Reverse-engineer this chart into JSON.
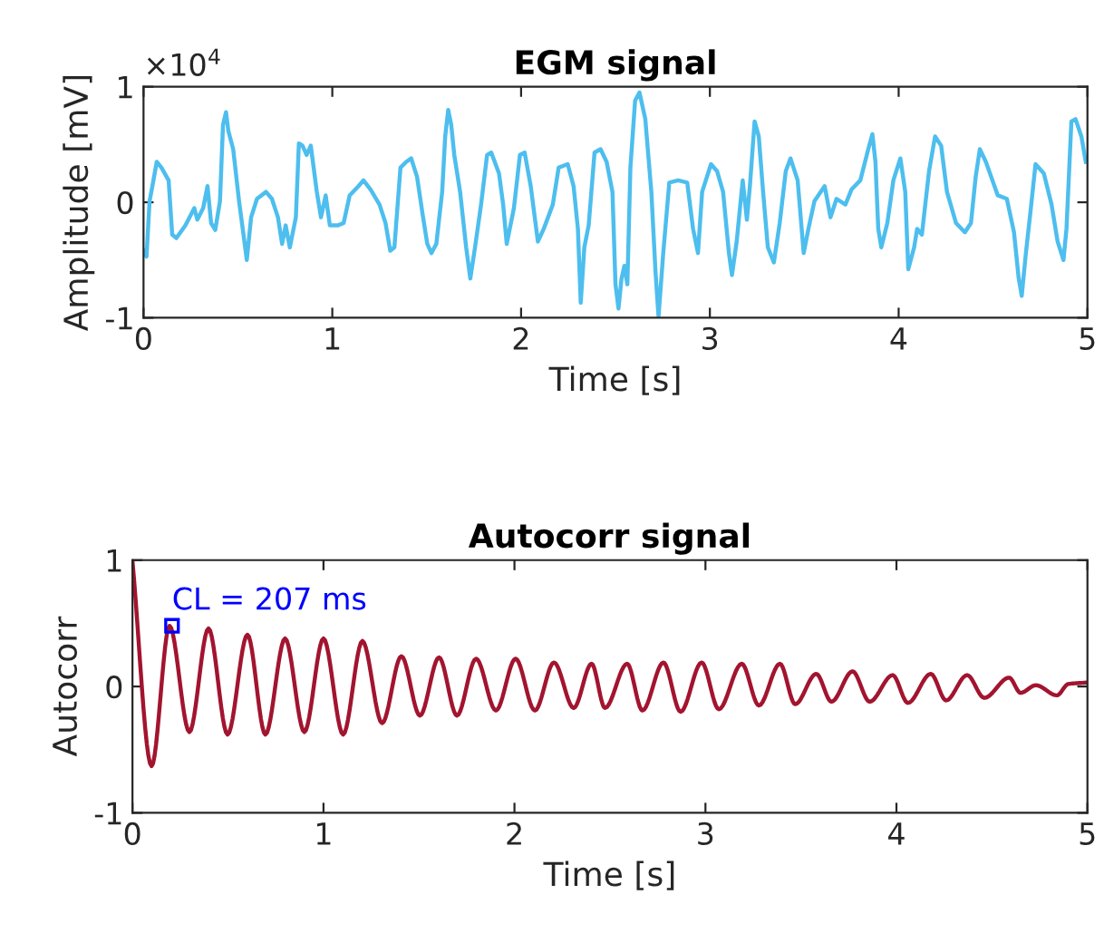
{
  "chart_data": [
    {
      "type": "line",
      "title": "EGM signal",
      "xlabel": "Time [s]",
      "ylabel": "Amplitude [mV]",
      "annotations": [
        "×10$^{4}$"
      ],
      "xlim": [
        0,
        5
      ],
      "xticks": [
        0,
        1,
        2,
        3,
        4,
        5
      ],
      "ylim": [
        -1,
        1
      ],
      "yticks": [
        -1,
        0,
        1
      ],
      "x": [
        0,
        0.016,
        0.032,
        0.047,
        0.07,
        0.095,
        0.133,
        0.152,
        0.174,
        0.222,
        0.269,
        0.285,
        0.316,
        0.339,
        0.358,
        0.38,
        0.405,
        0.421,
        0.437,
        0.449,
        0.475,
        0.506,
        0.528,
        0.547,
        0.57,
        0.601,
        0.649,
        0.68,
        0.712,
        0.734,
        0.753,
        0.775,
        0.807,
        0.823,
        0.842,
        0.864,
        0.886,
        0.918,
        0.94,
        0.965,
        0.987,
        1.028,
        1.06,
        1.092,
        1.139,
        1.165,
        1.203,
        1.25,
        1.282,
        1.307,
        1.329,
        1.361,
        1.392,
        1.418,
        1.449,
        1.478,
        1.503,
        1.525,
        1.551,
        1.582,
        1.598,
        1.614,
        1.63,
        1.646,
        1.677,
        1.709,
        1.731,
        1.756,
        1.788,
        1.82,
        1.842,
        1.883,
        1.905,
        1.924,
        1.962,
        1.994,
        2.019,
        2.051,
        2.089,
        2.12,
        2.168,
        2.199,
        2.247,
        2.278,
        2.301,
        2.316,
        2.335,
        2.358,
        2.389,
        2.421,
        2.453,
        2.484,
        2.5,
        2.516,
        2.532,
        2.547,
        2.563,
        2.579,
        2.604,
        2.627,
        2.658,
        2.69,
        2.712,
        2.728,
        2.753,
        2.785,
        2.832,
        2.88,
        2.911,
        2.937,
        2.959,
        3.006,
        3.038,
        3.07,
        3.101,
        3.117,
        3.142,
        3.174,
        3.196,
        3.212,
        3.237,
        3.259,
        3.282,
        3.307,
        3.339,
        3.37,
        3.402,
        3.427,
        3.465,
        3.497,
        3.522,
        3.554,
        3.608,
        3.639,
        3.671,
        3.718,
        3.75,
        3.797,
        3.839,
        3.861,
        3.877,
        3.892,
        3.908,
        3.94,
        3.972,
        4.009,
        4.035,
        4.051,
        4.082,
        4.098,
        4.123,
        4.161,
        4.193,
        4.225,
        4.256,
        4.304,
        4.351,
        4.383,
        4.408,
        4.43,
        4.462,
        4.525,
        4.573,
        4.611,
        4.636,
        4.652,
        4.674,
        4.699,
        4.725,
        4.769,
        4.81,
        4.842,
        4.873,
        4.889,
        4.915,
        4.937,
        4.968,
        4.991
      ],
      "series": [
        {
          "color": "#4dbeee",
          "values": [
            -0.42,
            -0.47,
            0.01,
            0.14,
            0.35,
            0.3,
            0.19,
            -0.28,
            -0.31,
            -0.2,
            -0.05,
            -0.15,
            -0.05,
            0.14,
            -0.18,
            -0.24,
            0.01,
            0.67,
            0.78,
            0.62,
            0.46,
            0.01,
            -0.26,
            -0.5,
            -0.13,
            0.03,
            0.09,
            0.03,
            -0.13,
            -0.36,
            -0.2,
            -0.39,
            -0.13,
            0.51,
            0.49,
            0.41,
            0.49,
            0.09,
            -0.13,
            0.06,
            -0.2,
            -0.2,
            -0.18,
            0.06,
            0.14,
            0.19,
            0.11,
            -0.02,
            -0.18,
            -0.42,
            -0.39,
            0.3,
            0.35,
            0.38,
            0.22,
            -0.1,
            -0.36,
            -0.44,
            -0.36,
            0.09,
            0.57,
            0.8,
            0.67,
            0.41,
            0.09,
            -0.39,
            -0.66,
            -0.39,
            -0.02,
            0.41,
            0.43,
            0.25,
            -0.02,
            -0.36,
            -0.05,
            0.41,
            0.43,
            0.14,
            -0.34,
            -0.23,
            -0.02,
            0.3,
            0.33,
            0.14,
            -0.23,
            -0.87,
            -0.39,
            -0.2,
            0.43,
            0.46,
            0.35,
            0.09,
            -0.71,
            -0.92,
            -0.66,
            -0.55,
            -0.71,
            0.3,
            0.88,
            0.95,
            0.72,
            0.09,
            -0.6,
            -0.99,
            -0.44,
            0.17,
            0.19,
            0.17,
            -0.23,
            -0.44,
            0.09,
            0.33,
            0.27,
            0.09,
            -0.44,
            -0.63,
            -0.34,
            0.19,
            -0.15,
            0.14,
            0.7,
            0.57,
            0.09,
            -0.39,
            -0.52,
            -0.18,
            0.27,
            0.38,
            0.19,
            -0.44,
            -0.23,
            0.01,
            0.14,
            -0.13,
            0.03,
            -0.02,
            0.11,
            0.19,
            0.46,
            0.59,
            0.35,
            -0.23,
            -0.39,
            -0.18,
            0.19,
            0.38,
            0.09,
            -0.58,
            -0.39,
            -0.23,
            -0.28,
            0.27,
            0.57,
            0.49,
            0.09,
            -0.18,
            -0.26,
            -0.18,
            0.22,
            0.46,
            0.35,
            0.06,
            0.03,
            -0.26,
            -0.66,
            -0.81,
            -0.44,
            -0.07,
            0.33,
            0.25,
            -0.02,
            -0.34,
            -0.5,
            -0.23,
            0.7,
            0.72,
            0.57,
            0.35
          ]
        }
      ]
    },
    {
      "type": "line",
      "title": "Autocorr signal",
      "xlabel": "Time [s]",
      "ylabel": "Autocorr",
      "annotations": [
        {
          "text": "CL = 207 ms",
          "x": 0.207,
          "y": 0.48
        }
      ],
      "xlim": [
        0,
        5
      ],
      "xticks": [
        0,
        1,
        2,
        3,
        4,
        5
      ],
      "ylim": [
        -1,
        1
      ],
      "yticks": [
        -1,
        0,
        1
      ],
      "x": [
        0,
        0.1,
        0.194,
        0.298,
        0.398,
        0.498,
        0.602,
        0.696,
        0.799,
        0.9,
        1.0,
        1.103,
        1.204,
        1.307,
        1.408,
        1.505,
        1.605,
        1.699,
        1.799,
        1.903,
        2.006,
        2.107,
        2.207,
        2.31,
        2.404,
        2.474,
        2.59,
        2.67,
        2.78,
        2.87,
        2.98,
        3.07,
        3.19,
        3.28,
        3.39,
        3.47,
        3.58,
        3.66,
        3.77,
        3.86,
        3.98,
        4.06,
        4.18,
        4.26,
        4.37,
        4.46,
        4.59,
        4.65,
        4.73,
        4.84,
        4.9,
        4.99
      ],
      "series": [
        {
          "color": "#a2142f",
          "values": [
            0.99,
            -0.63,
            0.48,
            -0.36,
            0.46,
            -0.38,
            0.41,
            -0.38,
            0.38,
            -0.36,
            0.38,
            -0.38,
            0.36,
            -0.29,
            0.24,
            -0.23,
            0.23,
            -0.23,
            0.22,
            -0.19,
            0.22,
            -0.19,
            0.19,
            -0.17,
            0.18,
            -0.17,
            0.18,
            -0.19,
            0.19,
            -0.2,
            0.19,
            -0.18,
            0.18,
            -0.15,
            0.18,
            -0.14,
            0.1,
            -0.12,
            0.12,
            -0.12,
            0.09,
            -0.13,
            0.1,
            -0.11,
            0.09,
            -0.09,
            0.07,
            -0.05,
            0.01,
            -0.07,
            0.02,
            0.03
          ]
        }
      ]
    }
  ]
}
